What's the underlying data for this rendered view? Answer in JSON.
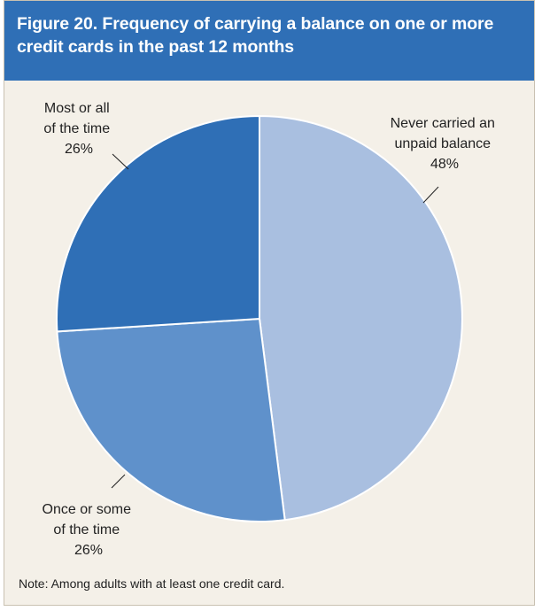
{
  "figure": {
    "title": "Figure 20. Frequency of carrying a balance on one or more credit cards in the past 12 months",
    "note": "Note: Among adults with at least one credit card."
  },
  "colors": {
    "header_bg": "#2f6fb6",
    "panel_bg": "#f4f0e8",
    "slice_never": "#a9bfe0",
    "slice_once": "#5f91cb",
    "slice_most": "#2f6fb6"
  },
  "chart_data": {
    "type": "pie",
    "title": "Figure 20. Frequency of carrying a balance on one or more credit cards in the past 12 months",
    "slices": [
      {
        "label_lines": [
          "Never carried an",
          "unpaid balance"
        ],
        "percent_label": "48%",
        "value": 48,
        "color": "#a9bfe0"
      },
      {
        "label_lines": [
          "Once or some",
          "of the time"
        ],
        "percent_label": "26%",
        "value": 26,
        "color": "#5f91cb"
      },
      {
        "label_lines": [
          "Most or all",
          "of the time"
        ],
        "percent_label": "26%",
        "value": 26,
        "color": "#2f6fb6"
      }
    ],
    "start": "12 o'clock",
    "direction": "clockwise",
    "legend": "none (direct labels with leader lines)"
  }
}
